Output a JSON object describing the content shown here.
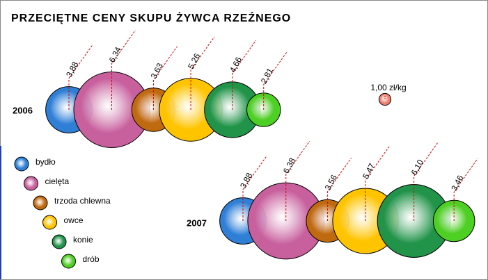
{
  "chart_data": {
    "type": "bubble",
    "title": "PRZECIĘTNE CENY SKUPU ŻYWCA RZEŹNEGO",
    "categories": [
      "bydło",
      "cielęta",
      "trzoda chlewna",
      "owce",
      "konie",
      "drób"
    ],
    "colors": [
      "#2f7fd6",
      "#c8609e",
      "#c06a10",
      "#ffc400",
      "#22944a",
      "#4ecf24"
    ],
    "series": [
      {
        "name": "2006",
        "values": [
          3.88,
          6.34,
          3.63,
          5.26,
          4.66,
          2.81
        ],
        "value_labels": [
          "3,88",
          "6,34",
          "3,63",
          "5,26",
          "4,66",
          "2,81"
        ]
      },
      {
        "name": "2007",
        "values": [
          3.88,
          6.38,
          3.56,
          5.47,
          6.1,
          3.46
        ],
        "value_labels": [
          "3,88",
          "6,38",
          "3,56",
          "5,47",
          "6,10",
          "3,46"
        ]
      }
    ],
    "reference": {
      "value": 1,
      "label": "1,00 zł/kg",
      "color": "#f08070"
    }
  }
}
